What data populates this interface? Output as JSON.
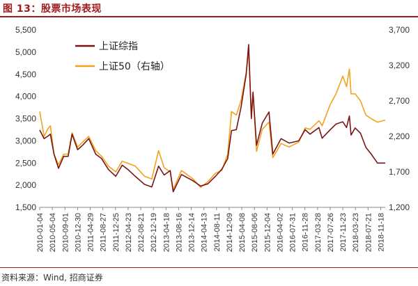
{
  "title": "图 13：股票市场表现",
  "source": "资料来源：Wind, 招商证券",
  "chart_data": {
    "type": "line",
    "x_type": "date",
    "x_ticks": [
      "2010-01-04",
      "2010-05-04",
      "2010-09-01",
      "2010-12-30",
      "2011-04-29",
      "2011-08-27",
      "2011-12-25",
      "2012-04-23",
      "2012-08-21",
      "2012-12-19",
      "2013-04-18",
      "2013-08-16",
      "2013-12-14",
      "2014-04-13",
      "2014-08-11",
      "2014-12-09",
      "2015-04-08",
      "2015-08-06",
      "2015-12-04",
      "2016-04-02",
      "2016-07-31",
      "2016-11-28",
      "2017-03-28",
      "2017-07-26",
      "2017-11-23",
      "2018-03-23",
      "2018-07-21",
      "2018-11-18"
    ],
    "x_range": [
      "2010-01-04",
      "2018-12-31"
    ],
    "y_left": {
      "range": [
        1500,
        5500
      ],
      "ticks": [
        "1,500",
        "2,000",
        "2,500",
        "3,000",
        "3,500",
        "4,000",
        "4,500",
        "5,000",
        "5,500"
      ]
    },
    "y_right": {
      "range": [
        1200,
        3700
      ],
      "ticks": [
        "1,200",
        "1,700",
        "2,200",
        "2,700",
        "3,200",
        "3,700"
      ]
    },
    "legend_position": "top-left",
    "grid": false,
    "series": [
      {
        "name": "上证综指",
        "axis": "left",
        "color": "#7a1414",
        "points": [
          [
            "2010-01-04",
            3243
          ],
          [
            "2010-02-15",
            3050
          ],
          [
            "2010-03-20",
            3100
          ],
          [
            "2010-04-15",
            3150
          ],
          [
            "2010-05-20",
            2700
          ],
          [
            "2010-07-02",
            2380
          ],
          [
            "2010-08-20",
            2650
          ],
          [
            "2010-10-01",
            2650
          ],
          [
            "2010-11-08",
            3150
          ],
          [
            "2010-12-30",
            2800
          ],
          [
            "2011-02-15",
            2900
          ],
          [
            "2011-04-15",
            3050
          ],
          [
            "2011-06-20",
            2700
          ],
          [
            "2011-08-15",
            2600
          ],
          [
            "2011-10-20",
            2350
          ],
          [
            "2011-12-28",
            2200
          ],
          [
            "2012-02-27",
            2450
          ],
          [
            "2012-04-23",
            2350
          ],
          [
            "2012-06-30",
            2200
          ],
          [
            "2012-09-25",
            2020
          ],
          [
            "2012-12-04",
            1960
          ],
          [
            "2013-02-06",
            2430
          ],
          [
            "2013-03-31",
            2230
          ],
          [
            "2013-05-28",
            2330
          ],
          [
            "2013-06-25",
            1850
          ],
          [
            "2013-09-12",
            2240
          ],
          [
            "2013-12-31",
            2100
          ],
          [
            "2014-03-12",
            1980
          ],
          [
            "2014-05-20",
            2030
          ],
          [
            "2014-07-31",
            2200
          ],
          [
            "2014-09-30",
            2360
          ],
          [
            "2014-11-25",
            2600
          ],
          [
            "2014-12-31",
            3230
          ],
          [
            "2015-02-15",
            3250
          ],
          [
            "2015-03-31",
            3750
          ],
          [
            "2015-05-20",
            4500
          ],
          [
            "2015-06-12",
            5170
          ],
          [
            "2015-07-08",
            3500
          ],
          [
            "2015-07-24",
            4100
          ],
          [
            "2015-08-26",
            2900
          ],
          [
            "2015-10-20",
            3400
          ],
          [
            "2015-12-22",
            3650
          ],
          [
            "2016-01-28",
            2700
          ],
          [
            "2016-04-15",
            3050
          ],
          [
            "2016-06-30",
            2950
          ],
          [
            "2016-09-30",
            3000
          ],
          [
            "2016-11-30",
            3250
          ],
          [
            "2017-01-15",
            3150
          ],
          [
            "2017-04-10",
            3300
          ],
          [
            "2017-05-10",
            3060
          ],
          [
            "2017-07-26",
            3250
          ],
          [
            "2017-09-20",
            3380
          ],
          [
            "2017-11-23",
            3430
          ],
          [
            "2017-12-28",
            3300
          ],
          [
            "2018-01-24",
            3560
          ],
          [
            "2018-02-09",
            3130
          ],
          [
            "2018-03-20",
            3290
          ],
          [
            "2018-05-10",
            3170
          ],
          [
            "2018-06-30",
            2850
          ],
          [
            "2018-08-20",
            2700
          ],
          [
            "2018-10-18",
            2500
          ],
          [
            "2018-12-31",
            2500
          ]
        ]
      },
      {
        "name": "上证50（右轴）",
        "axis": "right",
        "color": "#f2a21b",
        "points": [
          [
            "2010-01-04",
            2550
          ],
          [
            "2010-02-15",
            2200
          ],
          [
            "2010-03-20",
            2300
          ],
          [
            "2010-04-15",
            2350
          ],
          [
            "2010-05-20",
            1950
          ],
          [
            "2010-07-02",
            1800
          ],
          [
            "2010-08-20",
            1950
          ],
          [
            "2010-10-01",
            1950
          ],
          [
            "2010-11-08",
            2250
          ],
          [
            "2010-12-30",
            2050
          ],
          [
            "2011-02-15",
            2120
          ],
          [
            "2011-04-15",
            2200
          ],
          [
            "2011-06-20",
            2000
          ],
          [
            "2011-08-15",
            1920
          ],
          [
            "2011-10-20",
            1780
          ],
          [
            "2011-12-28",
            1700
          ],
          [
            "2012-02-27",
            1850
          ],
          [
            "2012-04-23",
            1820
          ],
          [
            "2012-06-30",
            1780
          ],
          [
            "2012-09-25",
            1640
          ],
          [
            "2012-12-04",
            1600
          ],
          [
            "2013-02-06",
            2000
          ],
          [
            "2013-03-31",
            1760
          ],
          [
            "2013-05-28",
            1700
          ],
          [
            "2013-06-25",
            1450
          ],
          [
            "2013-09-12",
            1720
          ],
          [
            "2013-12-31",
            1600
          ],
          [
            "2014-03-12",
            1480
          ],
          [
            "2014-05-20",
            1560
          ],
          [
            "2014-07-31",
            1680
          ],
          [
            "2014-09-30",
            1720
          ],
          [
            "2014-11-25",
            1950
          ],
          [
            "2014-12-31",
            2550
          ],
          [
            "2015-02-15",
            2500
          ],
          [
            "2015-03-31",
            2700
          ],
          [
            "2015-05-20",
            3100
          ],
          [
            "2015-06-12",
            3400
          ],
          [
            "2015-07-08",
            2500
          ],
          [
            "2015-07-24",
            2800
          ],
          [
            "2015-08-26",
            1990
          ],
          [
            "2015-10-20",
            2300
          ],
          [
            "2015-12-22",
            2400
          ],
          [
            "2016-01-28",
            1900
          ],
          [
            "2016-04-15",
            2100
          ],
          [
            "2016-06-30",
            2050
          ],
          [
            "2016-09-30",
            2120
          ],
          [
            "2016-11-30",
            2320
          ],
          [
            "2017-01-15",
            2300
          ],
          [
            "2017-04-10",
            2420
          ],
          [
            "2017-05-10",
            2350
          ],
          [
            "2017-07-26",
            2650
          ],
          [
            "2017-09-20",
            2800
          ],
          [
            "2017-11-23",
            3050
          ],
          [
            "2017-12-28",
            2900
          ],
          [
            "2018-01-24",
            3150
          ],
          [
            "2018-02-09",
            2800
          ],
          [
            "2018-03-20",
            2800
          ],
          [
            "2018-05-10",
            2700
          ],
          [
            "2018-06-30",
            2500
          ],
          [
            "2018-08-20",
            2450
          ],
          [
            "2018-10-18",
            2400
          ],
          [
            "2018-12-31",
            2430
          ]
        ]
      }
    ]
  }
}
